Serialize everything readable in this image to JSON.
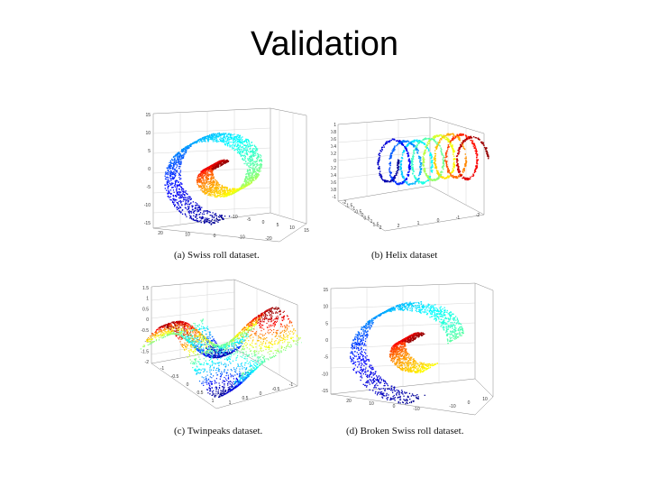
{
  "slide": {
    "title": "Validation"
  },
  "figures": [
    {
      "id": "a",
      "caption": "(a) Swiss roll dataset.",
      "z_ticks": [
        "15",
        "10",
        "5",
        "0",
        "-5",
        "-10",
        "-15"
      ],
      "x_ticks": [
        "20",
        "10",
        "0",
        "-10",
        "-20"
      ],
      "y_ticks": [
        "-10",
        "-5",
        "0",
        "5",
        "10",
        "15"
      ]
    },
    {
      "id": "b",
      "caption": "(b) Helix dataset",
      "z_ticks": [
        "1",
        "0.8",
        "0.6",
        "0.4",
        "0.2",
        "0",
        "-0.2",
        "-0.4",
        "-0.6",
        "-0.8",
        "-1"
      ],
      "x_ticks": [
        "-2",
        "-1.5",
        "-1",
        "-0.5",
        "0",
        "0.5",
        "1",
        "1.5",
        "2"
      ],
      "y_ticks": [
        "2",
        "1",
        "0",
        "-1",
        "-2"
      ]
    },
    {
      "id": "c",
      "caption": "(c) Twinpeaks dataset.",
      "z_ticks": [
        "1.5",
        "1",
        "0.5",
        "0",
        "-0.5",
        "-1",
        "-1.5",
        "-2"
      ],
      "x_ticks": [
        "-1",
        "-0.5",
        "0",
        "0.5",
        "1"
      ],
      "y_ticks": [
        "1",
        "0.5",
        "0",
        "-0.5",
        "-1"
      ]
    },
    {
      "id": "d",
      "caption": "(d) Broken Swiss roll dataset.",
      "z_ticks": [
        "15",
        "10",
        "5",
        "0",
        "-5",
        "-10",
        "-15"
      ],
      "x_ticks": [
        "20",
        "10",
        "0",
        "-10"
      ],
      "y_ticks": [
        "-10",
        "0",
        "10"
      ]
    }
  ],
  "colormap": [
    "#00008f",
    "#0000ff",
    "#00a0ff",
    "#00ffff",
    "#70ff8f",
    "#ffff00",
    "#ff9000",
    "#ff0000",
    "#8f0000"
  ]
}
